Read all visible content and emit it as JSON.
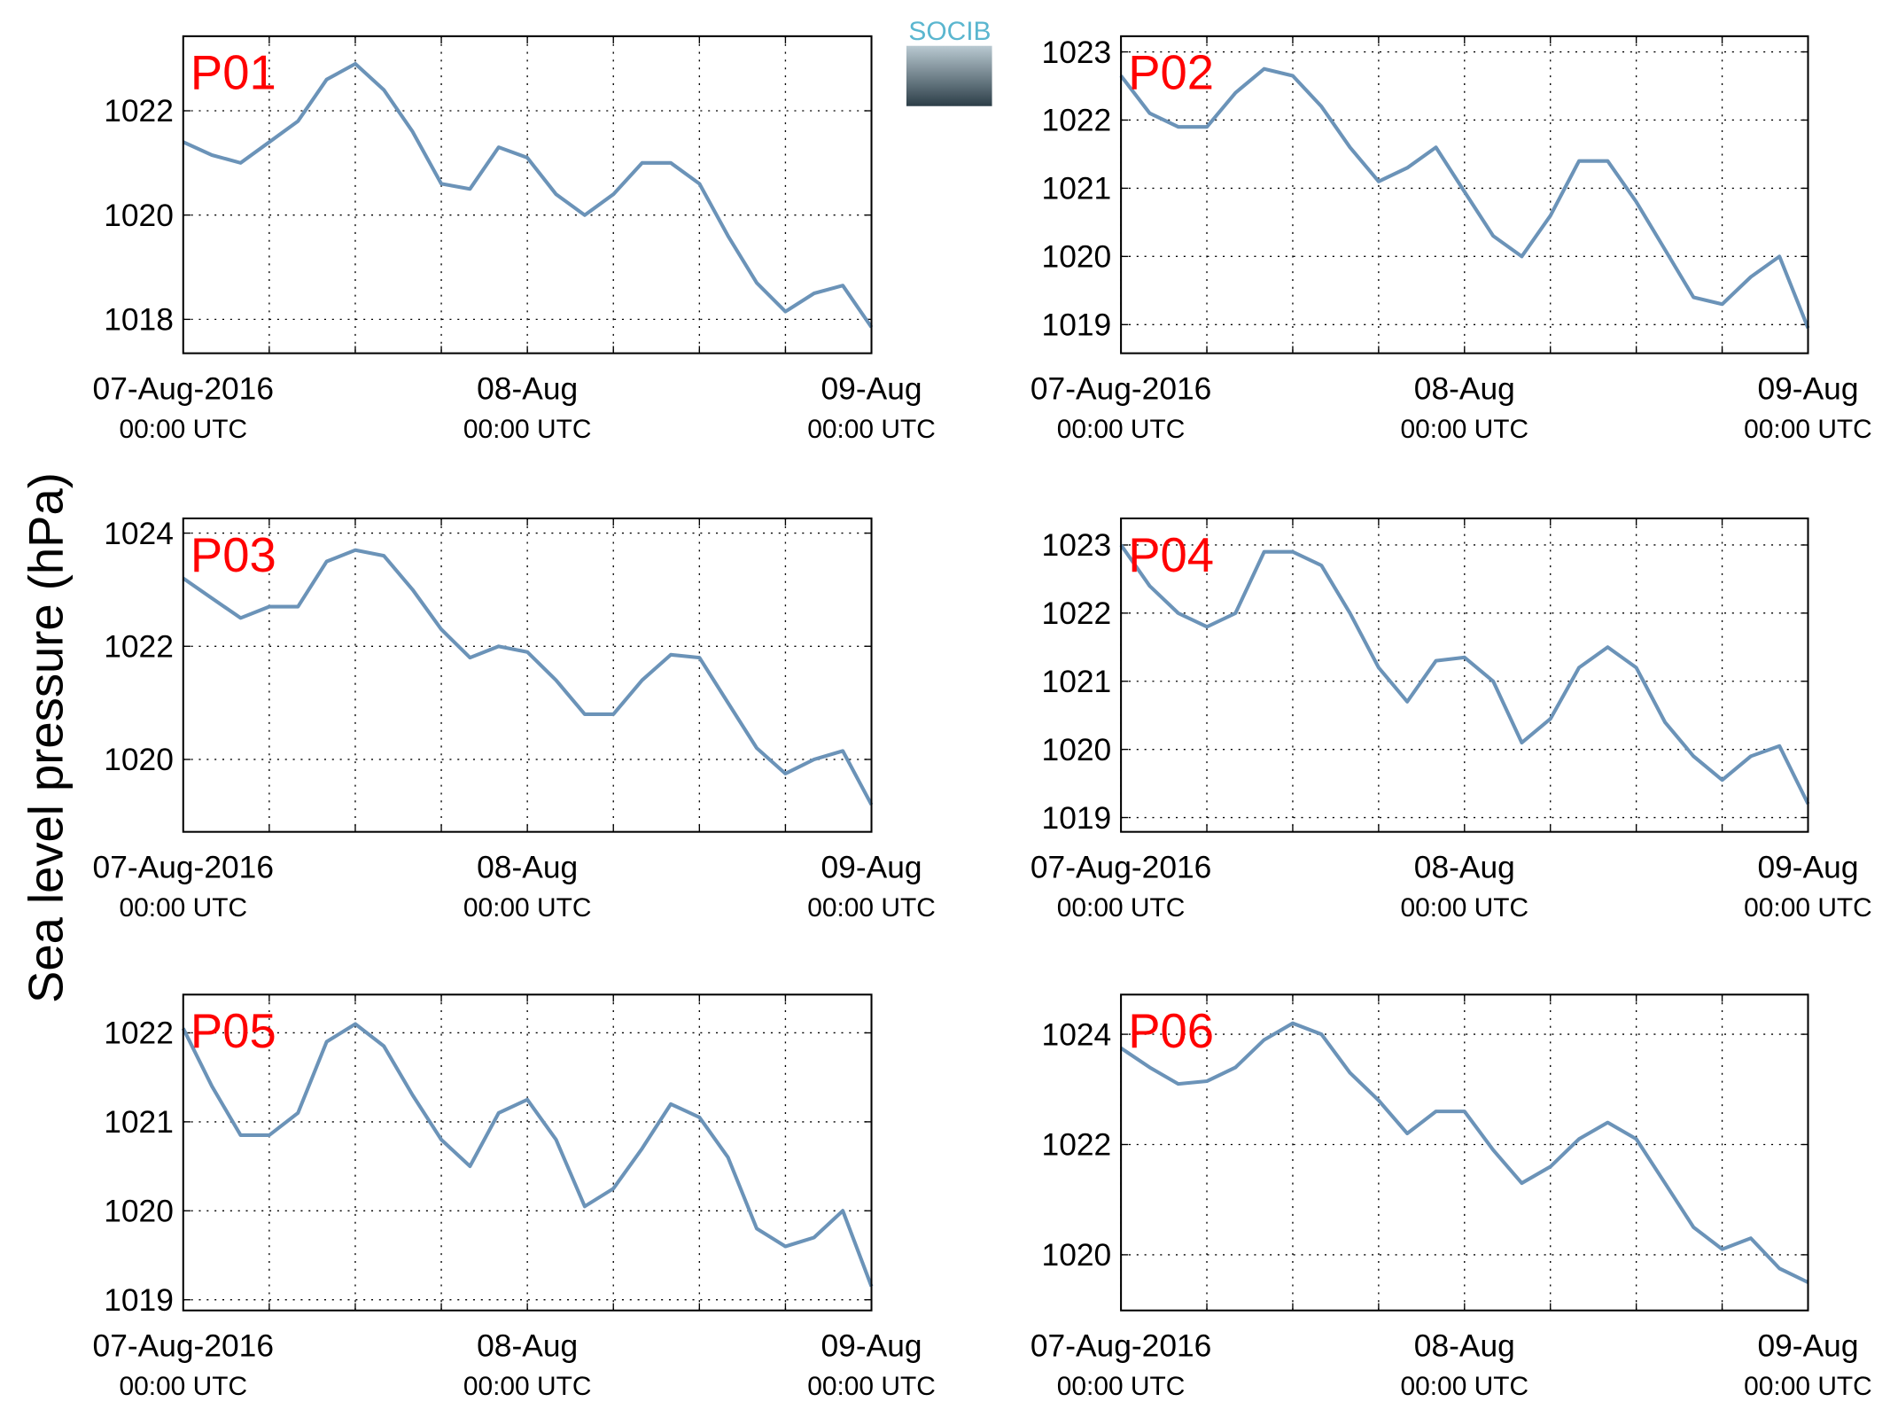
{
  "ylabel": "Sea level pressure (hPa)",
  "logo": "SOCIB",
  "chart_data": [
    {
      "type": "line",
      "title": "P01",
      "color": "#6b93b8",
      "grid": true,
      "x": [
        0,
        2,
        4,
        6,
        8,
        10,
        12,
        14,
        16,
        18,
        20,
        22,
        24,
        26,
        28,
        30,
        32,
        34,
        36,
        38,
        40,
        42,
        44,
        46,
        48
      ],
      "values": [
        1021.4,
        1021.15,
        1021.0,
        1021.4,
        1021.8,
        1022.6,
        1022.9,
        1022.4,
        1021.6,
        1020.6,
        1020.5,
        1021.3,
        1021.1,
        1020.4,
        1020.0,
        1020.4,
        1021.0,
        1021.0,
        1020.6,
        1019.6,
        1018.7,
        1018.15,
        1018.5,
        1018.65,
        1017.85
      ],
      "xlim": [
        0,
        48
      ],
      "xticks": [
        {
          "value": 0,
          "label": "07-Aug-2016",
          "sublabel": "00:00 UTC"
        },
        {
          "value": 24,
          "label": "08-Aug",
          "sublabel": "00:00 UTC"
        },
        {
          "value": 48,
          "label": "09-Aug",
          "sublabel": "00:00 UTC"
        }
      ],
      "xminorticks": [
        6,
        12,
        18,
        30,
        36,
        42
      ],
      "ylim": [
        1017.35,
        1023.43
      ],
      "yticks": [
        1018,
        1020,
        1022
      ]
    },
    {
      "type": "line",
      "title": "P02",
      "color": "#6b93b8",
      "grid": true,
      "x": [
        0,
        2,
        4,
        6,
        8,
        10,
        12,
        14,
        16,
        18,
        20,
        22,
        24,
        26,
        28,
        30,
        32,
        34,
        36,
        38,
        40,
        42,
        44,
        46,
        48
      ],
      "values": [
        1022.65,
        1022.1,
        1021.9,
        1021.9,
        1022.4,
        1022.75,
        1022.65,
        1022.2,
        1021.6,
        1021.1,
        1021.3,
        1021.6,
        1020.95,
        1020.3,
        1020.0,
        1020.6,
        1021.4,
        1021.4,
        1020.8,
        1020.1,
        1019.4,
        1019.3,
        1019.7,
        1020.0,
        1018.95
      ],
      "xlim": [
        0,
        48
      ],
      "xticks": [
        {
          "value": 0,
          "label": "07-Aug-2016",
          "sublabel": "00:00 UTC"
        },
        {
          "value": 24,
          "label": "08-Aug",
          "sublabel": "00:00 UTC"
        },
        {
          "value": 48,
          "label": "09-Aug",
          "sublabel": "00:00 UTC"
        }
      ],
      "xminorticks": [
        6,
        12,
        18,
        30,
        36,
        42
      ],
      "ylim": [
        1018.58,
        1023.23
      ],
      "yticks": [
        1019,
        1020,
        1021,
        1022,
        1023
      ]
    },
    {
      "type": "line",
      "title": "P03",
      "color": "#6b93b8",
      "grid": true,
      "x": [
        0,
        2,
        4,
        6,
        8,
        10,
        12,
        14,
        16,
        18,
        20,
        22,
        24,
        26,
        28,
        30,
        32,
        34,
        36,
        38,
        40,
        42,
        44,
        46,
        48
      ],
      "values": [
        1023.2,
        1022.85,
        1022.5,
        1022.7,
        1022.7,
        1023.5,
        1023.7,
        1023.6,
        1023.0,
        1022.3,
        1021.8,
        1022.0,
        1021.9,
        1021.4,
        1020.8,
        1020.8,
        1021.4,
        1021.85,
        1021.8,
        1021.0,
        1020.2,
        1019.75,
        1020.0,
        1020.15,
        1019.2
      ],
      "xlim": [
        0,
        48
      ],
      "xticks": [
        {
          "value": 0,
          "label": "07-Aug-2016",
          "sublabel": "00:00 UTC"
        },
        {
          "value": 24,
          "label": "08-Aug",
          "sublabel": "00:00 UTC"
        },
        {
          "value": 48,
          "label": "09-Aug",
          "sublabel": "00:00 UTC"
        }
      ],
      "xminorticks": [
        6,
        12,
        18,
        30,
        36,
        42
      ],
      "ylim": [
        1018.72,
        1024.26
      ],
      "yticks": [
        1020,
        1022,
        1024
      ]
    },
    {
      "type": "line",
      "title": "P04",
      "color": "#6b93b8",
      "grid": true,
      "x": [
        0,
        2,
        4,
        6,
        8,
        10,
        12,
        14,
        16,
        18,
        20,
        22,
        24,
        26,
        28,
        30,
        32,
        34,
        36,
        38,
        40,
        42,
        44,
        46,
        48
      ],
      "values": [
        1023.0,
        1022.4,
        1022.0,
        1021.8,
        1022.0,
        1022.9,
        1022.9,
        1022.7,
        1022.0,
        1021.2,
        1020.7,
        1021.3,
        1021.35,
        1021.0,
        1020.1,
        1020.45,
        1021.2,
        1021.5,
        1021.2,
        1020.4,
        1019.9,
        1019.55,
        1019.9,
        1020.05,
        1019.2
      ],
      "xlim": [
        0,
        48
      ],
      "xticks": [
        {
          "value": 0,
          "label": "07-Aug-2016",
          "sublabel": "00:00 UTC"
        },
        {
          "value": 24,
          "label": "08-Aug",
          "sublabel": "00:00 UTC"
        },
        {
          "value": 48,
          "label": "09-Aug",
          "sublabel": "00:00 UTC"
        }
      ],
      "xminorticks": [
        6,
        12,
        18,
        30,
        36,
        42
      ],
      "ylim": [
        1018.79,
        1023.39
      ],
      "yticks": [
        1019,
        1020,
        1021,
        1022,
        1023
      ]
    },
    {
      "type": "line",
      "title": "P05",
      "color": "#6b93b8",
      "grid": true,
      "x": [
        0,
        2,
        4,
        6,
        8,
        10,
        12,
        14,
        16,
        18,
        20,
        22,
        24,
        26,
        28,
        30,
        32,
        34,
        36,
        38,
        40,
        42,
        44,
        46,
        48
      ],
      "values": [
        1022.05,
        1021.4,
        1020.85,
        1020.85,
        1021.1,
        1021.9,
        1022.1,
        1021.85,
        1021.3,
        1020.8,
        1020.5,
        1021.1,
        1021.25,
        1020.8,
        1020.05,
        1020.25,
        1020.7,
        1021.2,
        1021.05,
        1020.6,
        1019.8,
        1019.6,
        1019.7,
        1020.0,
        1019.15
      ],
      "xlim": [
        0,
        48
      ],
      "xticks": [
        {
          "value": 0,
          "label": "07-Aug-2016",
          "sublabel": "00:00 UTC"
        },
        {
          "value": 24,
          "label": "08-Aug",
          "sublabel": "00:00 UTC"
        },
        {
          "value": 48,
          "label": "09-Aug",
          "sublabel": "00:00 UTC"
        }
      ],
      "xminorticks": [
        6,
        12,
        18,
        30,
        36,
        42
      ],
      "ylim": [
        1018.88,
        1022.43
      ],
      "yticks": [
        1019,
        1020,
        1021,
        1022
      ]
    },
    {
      "type": "line",
      "title": "P06",
      "color": "#6b93b8",
      "grid": true,
      "x": [
        0,
        2,
        4,
        6,
        8,
        10,
        12,
        14,
        16,
        18,
        20,
        22,
        24,
        26,
        28,
        30,
        32,
        34,
        36,
        38,
        40,
        42,
        44,
        46,
        48
      ],
      "values": [
        1023.75,
        1023.4,
        1023.1,
        1023.15,
        1023.4,
        1023.9,
        1024.2,
        1024.0,
        1023.3,
        1022.8,
        1022.2,
        1022.6,
        1022.6,
        1021.9,
        1021.3,
        1021.6,
        1022.1,
        1022.4,
        1022.1,
        1021.3,
        1020.5,
        1020.1,
        1020.3,
        1019.75,
        1019.5
      ],
      "xlim": [
        0,
        48
      ],
      "xticks": [
        {
          "value": 0,
          "label": "07-Aug-2016",
          "sublabel": "00:00 UTC"
        },
        {
          "value": 24,
          "label": "08-Aug",
          "sublabel": "00:00 UTC"
        },
        {
          "value": 48,
          "label": "09-Aug",
          "sublabel": "00:00 UTC"
        }
      ],
      "xminorticks": [
        6,
        12,
        18,
        30,
        36,
        42
      ],
      "ylim": [
        1018.99,
        1024.72
      ],
      "yticks": [
        1020,
        1022,
        1024
      ]
    }
  ]
}
